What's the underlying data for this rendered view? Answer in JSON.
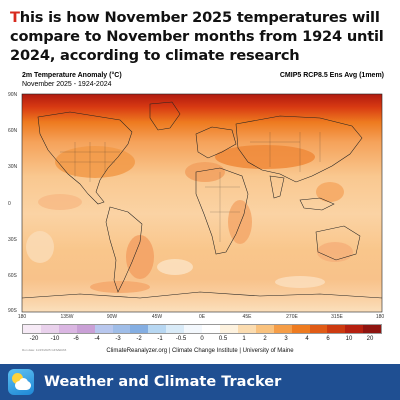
{
  "headline": {
    "first_letter": "T",
    "rest": "his is how November 2025 temperatures will compare to November months from 1924 until 2024, according to climate research"
  },
  "map": {
    "variable_title": "2m Temperature Anomaly (°C)",
    "period": "November 2025 - 1924-2024",
    "model": "CMIP5 RCP8.5 Ens Avg (1mem)",
    "lat_labels": [
      "90N",
      "60N",
      "30N",
      "0",
      "30S",
      "60S",
      "90S"
    ],
    "lon_labels": [
      "180",
      "135W",
      "90W",
      "45W",
      "0E",
      "45E",
      "270E",
      "315E",
      "180"
    ],
    "legend": {
      "colors": [
        "#f6eaf6",
        "#e9d1ec",
        "#dab6e2",
        "#c9a0d6",
        "#b8c7ee",
        "#9fbde8",
        "#84aee2",
        "#b7d7f2",
        "#d9ebf8",
        "#f3f8fd",
        "#ffffff",
        "#fdf2df",
        "#fbdcb0",
        "#f9c27e",
        "#f59d47",
        "#ee7b20",
        "#e05b16",
        "#cc3a10",
        "#b52010",
        "#8e1410"
      ],
      "ticks": [
        "-20",
        "-10",
        "-6",
        "-4",
        "-3",
        "-2",
        "-1",
        "-0.5",
        "0",
        "0.5",
        "1",
        "2",
        "3",
        "4",
        "6",
        "10",
        "20"
      ]
    },
    "small_note": "Run date: 11/15/2025 GFS/ERA5",
    "credit": "ClimateReanalyzer.org | Climate Change Institute | University of Maine"
  },
  "footer": {
    "app_name": "Weather and Climate Tracker",
    "icon": "weather-app-icon"
  }
}
